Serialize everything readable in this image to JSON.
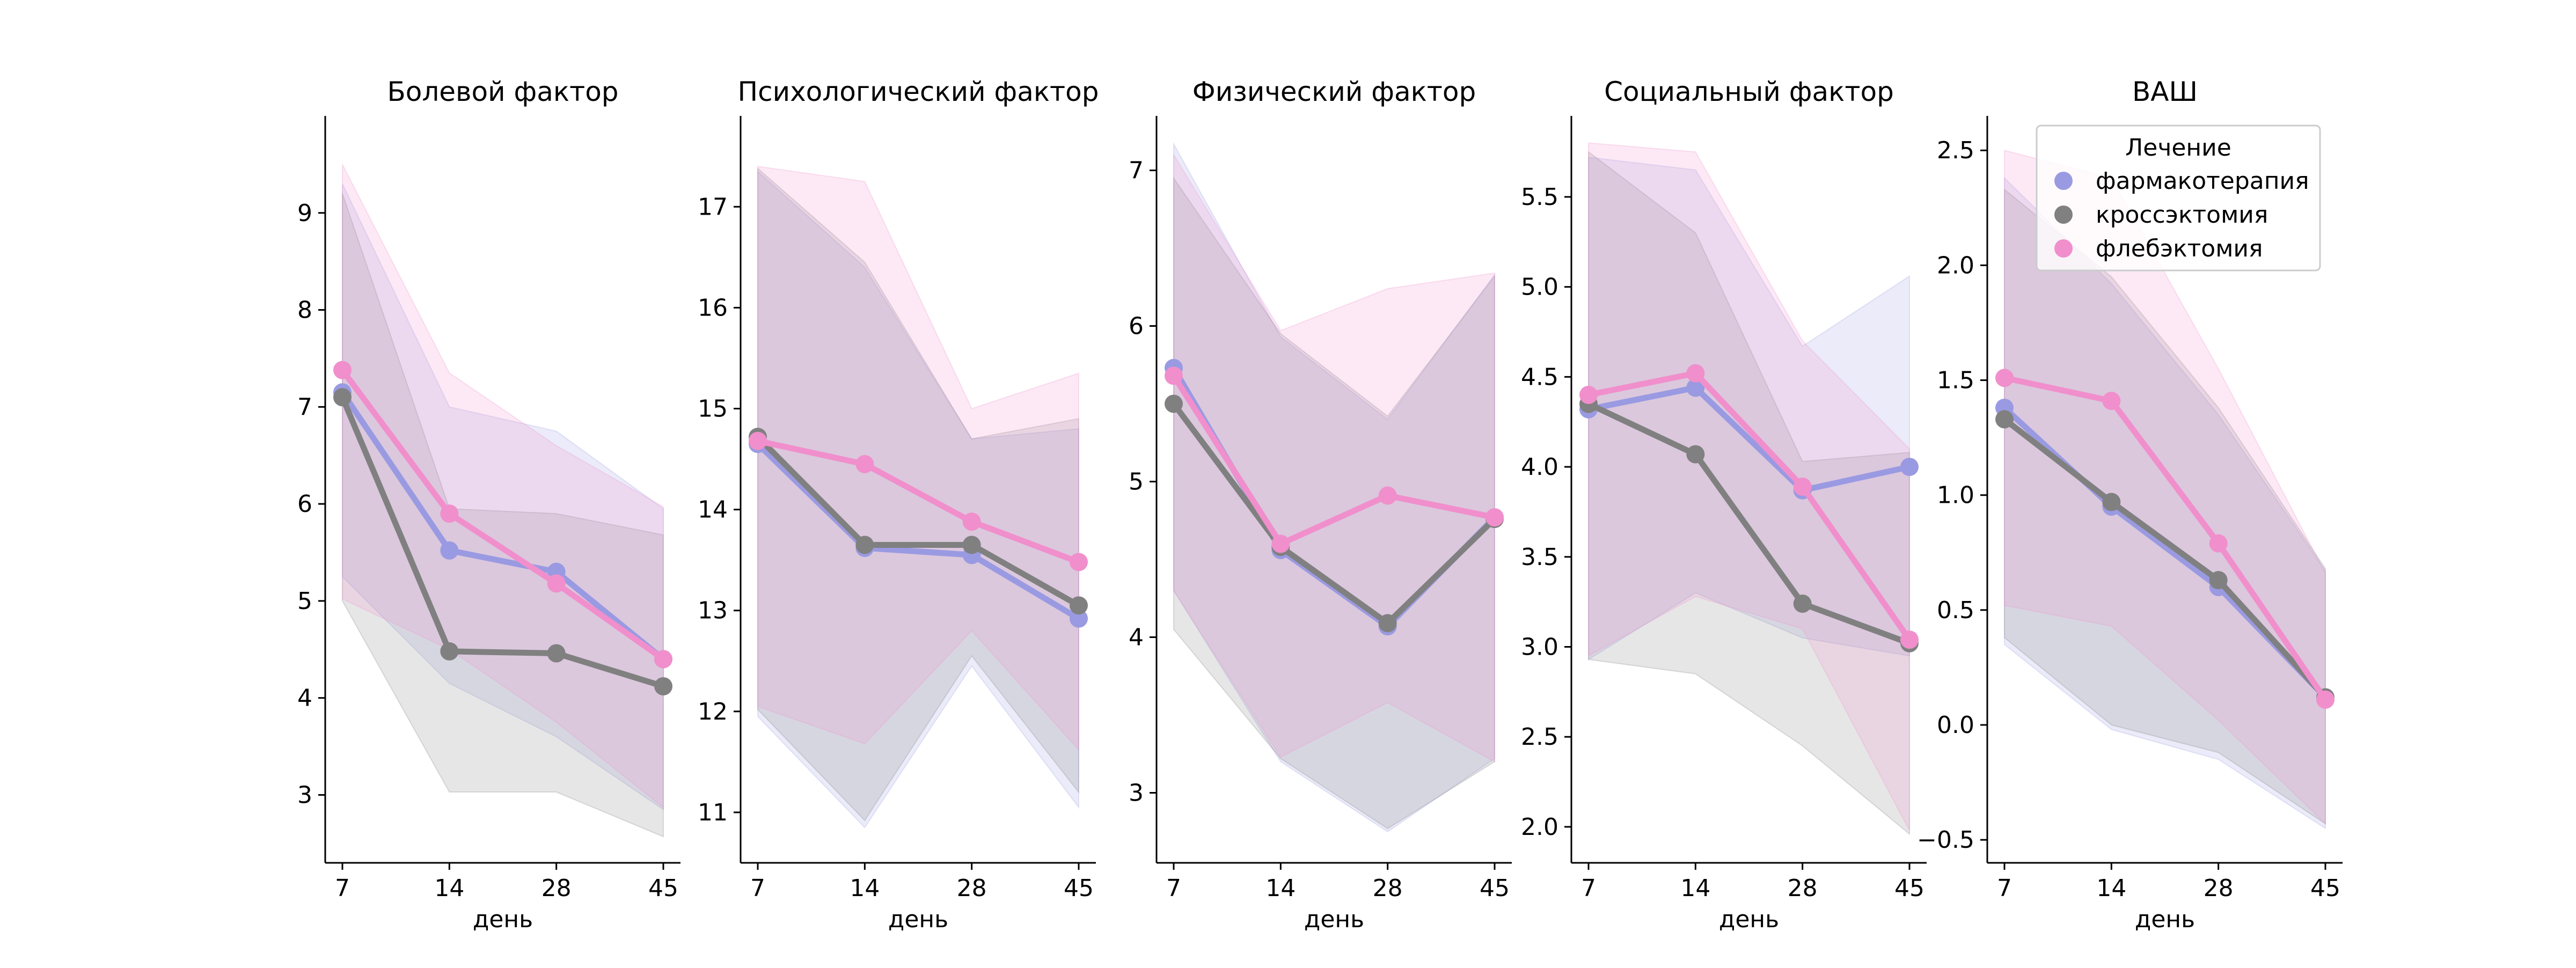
{
  "chart_data": [
    {
      "type": "line",
      "title": "Болевой фактор",
      "xlabel": "день",
      "ylabel": "",
      "categories": [
        "7",
        "14",
        "28",
        "45"
      ],
      "ylim": [
        2.3,
        10.0
      ],
      "yticks": [
        3,
        4,
        5,
        6,
        7,
        8,
        9
      ],
      "series": [
        {
          "name": "фармакотерапия",
          "color": "#9a9ae2",
          "values": [
            7.15,
            5.52,
            5.3,
            4.4
          ],
          "ci_lower": [
            5.25,
            4.15,
            3.6,
            2.85
          ],
          "ci_upper": [
            9.3,
            7.0,
            6.75,
            5.95
          ]
        },
        {
          "name": "кроссэктомия",
          "color": "#808080",
          "values": [
            7.1,
            4.48,
            4.46,
            4.12
          ],
          "ci_lower": [
            5.0,
            3.03,
            3.03,
            2.57
          ],
          "ci_upper": [
            9.2,
            5.95,
            5.9,
            5.68
          ]
        },
        {
          "name": "флебэктомия",
          "color": "#f08fcc",
          "values": [
            7.38,
            5.9,
            5.18,
            4.4
          ],
          "ci_lower": [
            5.02,
            4.5,
            3.75,
            2.87
          ],
          "ci_upper": [
            9.5,
            7.35,
            6.6,
            5.97
          ]
        }
      ]
    },
    {
      "type": "line",
      "title": "Психологический фактор",
      "xlabel": "день",
      "ylabel": "",
      "categories": [
        "7",
        "14",
        "28",
        "45"
      ],
      "ylim": [
        10.5,
        17.9
      ],
      "yticks": [
        11,
        12,
        13,
        14,
        15,
        16,
        17
      ],
      "series": [
        {
          "name": "фармакотерапия",
          "color": "#9a9ae2",
          "values": [
            14.65,
            13.62,
            13.55,
            12.92
          ],
          "ci_lower": [
            11.95,
            10.85,
            12.45,
            11.05
          ],
          "ci_upper": [
            17.35,
            16.4,
            14.7,
            14.8
          ]
        },
        {
          "name": "кроссэктомия",
          "color": "#808080",
          "values": [
            14.72,
            13.65,
            13.65,
            13.05
          ],
          "ci_lower": [
            12.02,
            10.92,
            12.55,
            11.2
          ],
          "ci_upper": [
            17.38,
            16.45,
            14.7,
            14.9
          ]
        },
        {
          "name": "флебэктомия",
          "color": "#f08fcc",
          "values": [
            14.68,
            14.45,
            13.88,
            13.48
          ],
          "ci_lower": [
            12.05,
            11.68,
            12.8,
            11.62
          ],
          "ci_upper": [
            17.4,
            17.25,
            15.0,
            15.35
          ]
        }
      ]
    },
    {
      "type": "line",
      "title": "Физический фактор",
      "xlabel": "день",
      "ylabel": "",
      "categories": [
        "7",
        "14",
        "28",
        "45"
      ],
      "ylim": [
        2.55,
        7.35
      ],
      "yticks": [
        3,
        4,
        5,
        6,
        7
      ],
      "series": [
        {
          "name": "фармакотерапия",
          "color": "#9a9ae2",
          "values": [
            5.73,
            4.56,
            4.07,
            4.77
          ],
          "ci_lower": [
            4.3,
            3.2,
            2.75,
            3.22
          ],
          "ci_upper": [
            7.17,
            5.93,
            5.4,
            6.33
          ]
        },
        {
          "name": "кроссэктомия",
          "color": "#808080",
          "values": [
            5.5,
            4.58,
            4.09,
            4.76
          ],
          "ci_lower": [
            4.05,
            3.22,
            2.77,
            3.2
          ],
          "ci_upper": [
            6.95,
            5.95,
            5.42,
            6.32
          ]
        },
        {
          "name": "флебэктомия",
          "color": "#f08fcc",
          "values": [
            5.68,
            4.6,
            4.91,
            4.77
          ],
          "ci_lower": [
            4.3,
            3.23,
            3.58,
            3.2
          ],
          "ci_upper": [
            7.1,
            5.97,
            6.24,
            6.34
          ]
        }
      ]
    },
    {
      "type": "line",
      "title": "Социальный фактор",
      "xlabel": "день",
      "ylabel": "",
      "categories": [
        "7",
        "14",
        "28",
        "45"
      ],
      "ylim": [
        1.8,
        5.95
      ],
      "yticks": [
        2.0,
        2.5,
        3.0,
        3.5,
        4.0,
        4.5,
        5.0,
        5.5
      ],
      "tick_labels": [
        "2.0",
        "2.5",
        "3.0",
        "3.5",
        "4.0",
        "4.5",
        "5.0",
        "5.5"
      ],
      "series": [
        {
          "name": "фармакотерапия",
          "color": "#9a9ae2",
          "values": [
            4.32,
            4.44,
            3.87,
            4.0
          ],
          "ci_lower": [
            2.93,
            3.3,
            3.05,
            2.95
          ],
          "ci_upper": [
            5.72,
            5.65,
            4.67,
            5.06
          ]
        },
        {
          "name": "кроссэктомия",
          "color": "#808080",
          "values": [
            4.35,
            4.07,
            3.24,
            3.02
          ],
          "ci_lower": [
            2.93,
            2.85,
            2.45,
            1.96
          ],
          "ci_upper": [
            5.75,
            5.3,
            4.03,
            4.08
          ]
        },
        {
          "name": "флебэктомия",
          "color": "#f08fcc",
          "values": [
            4.4,
            4.52,
            3.89,
            3.04
          ],
          "ci_lower": [
            2.95,
            3.28,
            3.1,
            1.98
          ],
          "ci_upper": [
            5.8,
            5.75,
            4.7,
            4.1
          ]
        }
      ]
    },
    {
      "type": "line",
      "title": "ВАШ",
      "xlabel": "день",
      "ylabel": "",
      "categories": [
        "7",
        "14",
        "28",
        "45"
      ],
      "ylim": [
        -0.6,
        2.65
      ],
      "yticks": [
        -0.5,
        0.0,
        0.5,
        1.0,
        1.5,
        2.0,
        2.5
      ],
      "tick_labels": [
        "−0.5",
        "0.0",
        "0.5",
        "1.0",
        "1.5",
        "2.0",
        "2.5"
      ],
      "legend": {
        "title": "Лечение",
        "placement": "upper-right",
        "items": [
          "фармакотерапия",
          "кроссэктомия",
          "флебэктомия"
        ]
      },
      "series": [
        {
          "name": "фармакотерапия",
          "color": "#9a9ae2",
          "values": [
            1.38,
            0.95,
            0.6,
            0.12
          ],
          "ci_lower": [
            0.35,
            -0.02,
            -0.15,
            -0.45
          ],
          "ci_upper": [
            2.38,
            1.92,
            1.35,
            0.67
          ]
        },
        {
          "name": "кроссэктомия",
          "color": "#808080",
          "values": [
            1.33,
            0.97,
            0.63,
            0.12
          ],
          "ci_lower": [
            0.38,
            0.0,
            -0.12,
            -0.43
          ],
          "ci_upper": [
            2.33,
            1.95,
            1.38,
            0.68
          ]
        },
        {
          "name": "флебэктомия",
          "color": "#f08fcc",
          "values": [
            1.51,
            1.41,
            0.79,
            0.11
          ],
          "ci_lower": [
            0.52,
            0.43,
            0.02,
            -0.43
          ],
          "ci_upper": [
            2.5,
            2.38,
            1.55,
            0.66
          ]
        }
      ]
    }
  ]
}
